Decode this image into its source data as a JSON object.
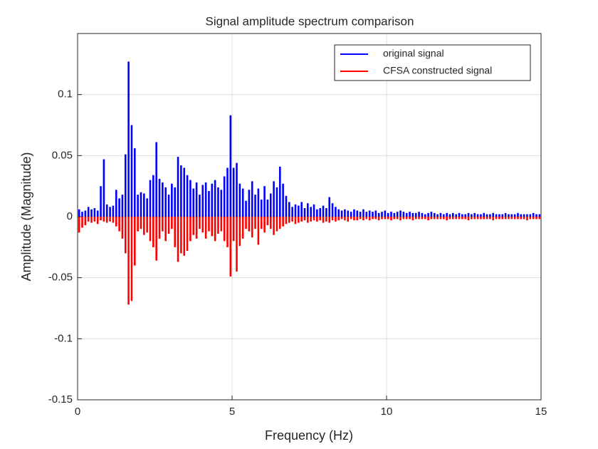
{
  "chart_data": {
    "type": "bar",
    "title": "Signal amplitude spectrum comparison",
    "x_label": "Frequency (Hz)",
    "y_label": "Amplitude (Magnitude)",
    "x": [
      0.05,
      0.15,
      0.25,
      0.35,
      0.45,
      0.55,
      0.65,
      0.75,
      0.85,
      0.95,
      1.05,
      1.15,
      1.25,
      1.35,
      1.45,
      1.55,
      1.65,
      1.75,
      1.85,
      1.95,
      2.05,
      2.15,
      2.25,
      2.35,
      2.45,
      2.55,
      2.65,
      2.75,
      2.85,
      2.95,
      3.05,
      3.15,
      3.25,
      3.35,
      3.45,
      3.55,
      3.65,
      3.75,
      3.85,
      3.95,
      4.05,
      4.15,
      4.25,
      4.35,
      4.45,
      4.55,
      4.65,
      4.75,
      4.85,
      4.95,
      5.05,
      5.15,
      5.25,
      5.35,
      5.45,
      5.55,
      5.65,
      5.75,
      5.85,
      5.95,
      6.05,
      6.15,
      6.25,
      6.35,
      6.45,
      6.55,
      6.65,
      6.75,
      6.85,
      6.95,
      7.05,
      7.15,
      7.25,
      7.35,
      7.45,
      7.55,
      7.65,
      7.75,
      7.85,
      7.95,
      8.05,
      8.15,
      8.25,
      8.35,
      8.45,
      8.55,
      8.65,
      8.75,
      8.85,
      8.95,
      9.05,
      9.15,
      9.25,
      9.35,
      9.45,
      9.55,
      9.65,
      9.75,
      9.85,
      9.95,
      10.05,
      10.15,
      10.25,
      10.35,
      10.45,
      10.55,
      10.65,
      10.75,
      10.85,
      10.95,
      11.05,
      11.15,
      11.25,
      11.35,
      11.45,
      11.55,
      11.65,
      11.75,
      11.85,
      11.95,
      12.05,
      12.15,
      12.25,
      12.35,
      12.45,
      12.55,
      12.65,
      12.75,
      12.85,
      12.95,
      13.05,
      13.15,
      13.25,
      13.35,
      13.45,
      13.55,
      13.65,
      13.75,
      13.85,
      13.95,
      14.05,
      14.15,
      14.25,
      14.35,
      14.45,
      14.55,
      14.65,
      14.75,
      14.85,
      14.95
    ],
    "series": [
      {
        "name": "original signal",
        "color": "#0000ff",
        "values": [
          0.006,
          0.004,
          0.005,
          0.008,
          0.006,
          0.007,
          0.005,
          0.025,
          0.047,
          0.01,
          0.008,
          0.009,
          0.022,
          0.015,
          0.018,
          0.051,
          0.127,
          0.075,
          0.056,
          0.018,
          0.02,
          0.019,
          0.015,
          0.03,
          0.034,
          0.061,
          0.031,
          0.028,
          0.024,
          0.018,
          0.027,
          0.024,
          0.049,
          0.042,
          0.04,
          0.034,
          0.03,
          0.023,
          0.028,
          0.018,
          0.026,
          0.028,
          0.021,
          0.027,
          0.03,
          0.024,
          0.022,
          0.033,
          0.04,
          0.083,
          0.04,
          0.044,
          0.027,
          0.023,
          0.013,
          0.022,
          0.029,
          0.018,
          0.023,
          0.014,
          0.025,
          0.014,
          0.019,
          0.029,
          0.024,
          0.041,
          0.027,
          0.017,
          0.012,
          0.008,
          0.01,
          0.009,
          0.012,
          0.007,
          0.011,
          0.008,
          0.01,
          0.006,
          0.007,
          0.009,
          0.007,
          0.016,
          0.011,
          0.008,
          0.006,
          0.005,
          0.006,
          0.005,
          0.004,
          0.006,
          0.005,
          0.004,
          0.006,
          0.004,
          0.005,
          0.004,
          0.005,
          0.003,
          0.004,
          0.005,
          0.003,
          0.004,
          0.003,
          0.004,
          0.005,
          0.004,
          0.003,
          0.004,
          0.003,
          0.003,
          0.004,
          0.003,
          0.002,
          0.003,
          0.004,
          0.003,
          0.002,
          0.003,
          0.002,
          0.003,
          0.002,
          0.003,
          0.002,
          0.003,
          0.002,
          0.002,
          0.003,
          0.002,
          0.003,
          0.002,
          0.002,
          0.003,
          0.002,
          0.002,
          0.003,
          0.002,
          0.002,
          0.002,
          0.003,
          0.002,
          0.002,
          0.002,
          0.003,
          0.002,
          0.002,
          0.002,
          0.002,
          0.003,
          0.002,
          0.002
        ]
      },
      {
        "name": "CFSA constructed signal",
        "color": "#ff0000",
        "values": [
          -0.013,
          -0.009,
          -0.007,
          -0.004,
          -0.005,
          -0.004,
          -0.006,
          -0.003,
          -0.004,
          -0.005,
          -0.004,
          -0.005,
          -0.008,
          -0.012,
          -0.018,
          -0.03,
          -0.072,
          -0.069,
          -0.04,
          -0.012,
          -0.01,
          -0.015,
          -0.013,
          -0.02,
          -0.025,
          -0.036,
          -0.018,
          -0.012,
          -0.02,
          -0.014,
          -0.01,
          -0.025,
          -0.037,
          -0.03,
          -0.032,
          -0.028,
          -0.02,
          -0.015,
          -0.018,
          -0.01,
          -0.013,
          -0.018,
          -0.012,
          -0.016,
          -0.02,
          -0.014,
          -0.012,
          -0.02,
          -0.025,
          -0.049,
          -0.02,
          -0.045,
          -0.024,
          -0.018,
          -0.01,
          -0.012,
          -0.017,
          -0.01,
          -0.023,
          -0.01,
          -0.013,
          -0.007,
          -0.01,
          -0.015,
          -0.012,
          -0.01,
          -0.008,
          -0.006,
          -0.005,
          -0.004,
          -0.006,
          -0.005,
          -0.004,
          -0.003,
          -0.005,
          -0.004,
          -0.003,
          -0.004,
          -0.003,
          -0.005,
          -0.004,
          -0.005,
          -0.003,
          -0.004,
          -0.003,
          -0.002,
          -0.003,
          -0.004,
          -0.002,
          -0.003,
          -0.003,
          -0.002,
          -0.003,
          -0.002,
          -0.003,
          -0.002,
          -0.002,
          -0.003,
          -0.002,
          -0.002,
          -0.002,
          -0.003,
          -0.002,
          -0.002,
          -0.003,
          -0.002,
          -0.002,
          -0.002,
          -0.003,
          -0.002,
          -0.002,
          -0.002,
          -0.002,
          -0.003,
          -0.002,
          -0.002,
          -0.002,
          -0.002,
          -0.002,
          -0.003,
          -0.002,
          -0.002,
          -0.002,
          -0.002,
          -0.002,
          -0.002,
          -0.003,
          -0.002,
          -0.002,
          -0.002,
          -0.002,
          -0.002,
          -0.002,
          -0.002,
          -0.003,
          -0.002,
          -0.002,
          -0.002,
          -0.002,
          -0.002,
          -0.002,
          -0.002,
          -0.002,
          -0.002,
          -0.002,
          -0.003,
          -0.002,
          -0.002,
          -0.002,
          -0.002
        ]
      }
    ],
    "bar_width": 0.06,
    "xlim": [
      0,
      15
    ],
    "xticks": [
      0,
      5,
      10,
      15
    ],
    "ylim": [
      -0.15,
      0.15
    ],
    "yticks": [
      -0.15,
      -0.1,
      -0.05,
      0,
      0.05,
      0.1
    ],
    "grid": true,
    "legend": "upper right"
  }
}
